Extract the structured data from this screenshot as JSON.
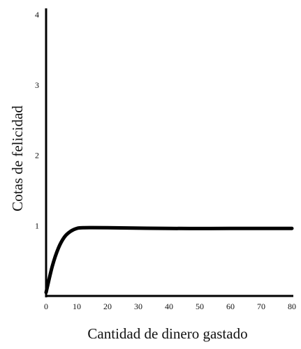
{
  "chart_data": {
    "type": "line",
    "xlabel": "Cantidad de dinero gastado",
    "ylabel": "Cotas de felicidad",
    "xlim": [
      0,
      80
    ],
    "ylim": [
      0,
      4
    ],
    "x_ticks": [
      "0",
      "10",
      "20",
      "30",
      "40",
      "50",
      "60",
      "70",
      "80"
    ],
    "y_ticks": [
      "1",
      "2",
      "3",
      "4"
    ],
    "grid": false,
    "legend": "none",
    "line_color": "#000000",
    "series": [
      {
        "x": [
          0,
          2,
          4,
          6,
          8,
          10,
          12,
          20,
          40,
          60,
          80
        ],
        "y": [
          0.05,
          0.42,
          0.68,
          0.84,
          0.92,
          0.96,
          0.97,
          0.97,
          0.96,
          0.96,
          0.96
        ]
      }
    ]
  }
}
